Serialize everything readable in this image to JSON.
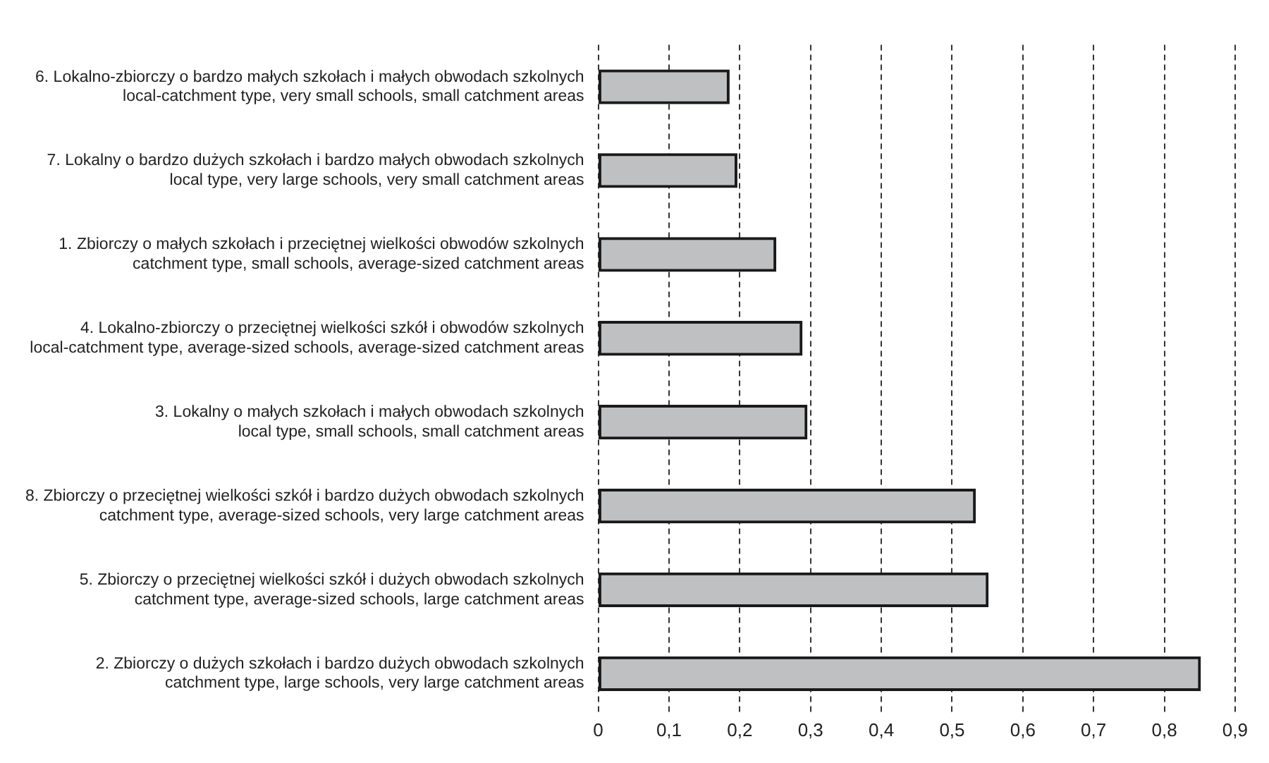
{
  "chart_data": {
    "type": "bar",
    "orientation": "horizontal",
    "categories": [
      "6. Lokalno-zbiorczy o bardzo małych szkołach i małych obwodach szkolnych\nlocal-catchment type, very small schools, small catchment areas",
      "7. Lokalny o bardzo dużych szkołach i bardzo małych obwodach szkolnych\nlocal type, very large schools, very small catchment areas",
      "1. Zbiorczy o małych szkołach i przeciętnej wielkości obwodów szkolnych\ncatchment type, small schools, average-sized catchment areas",
      "4. Lokalno-zbiorczy o przeciętnej wielkości szkół i obwodów szkolnych\nlocal-catchment type, average-sized schools, average-sized catchment areas",
      "3. Lokalny o małych szkołach i małych obwodach szkolnych\nlocal type, small schools, small catchment areas",
      "8. Zbiorczy o przeciętnej wielkości szkół i bardzo dużych obwodach szkolnych\ncatchment type, average-sized schools, very large catchment areas",
      "5. Zbiorczy o przeciętnej wielkości szkół i dużych obwodach szkolnych\ncatchment type, average-sized schools, large catchment areas",
      "2. Zbiorczy o dużych szkołach i bardzo dużych obwodach szkolnych\ncatchment type, large schools, very large catchment areas"
    ],
    "values": [
      0.185,
      0.196,
      0.251,
      0.288,
      0.295,
      0.533,
      0.551,
      0.851
    ],
    "color": "#bfc0c2",
    "xlim": [
      0,
      0.9
    ],
    "xticks": [
      {
        "value": 0,
        "label": "0"
      },
      {
        "value": 0.1,
        "label": "0,1"
      },
      {
        "value": 0.2,
        "label": "0,2"
      },
      {
        "value": 0.3,
        "label": "0,3"
      },
      {
        "value": 0.4,
        "label": "0,4"
      },
      {
        "value": 0.5,
        "label": "0,5"
      },
      {
        "value": 0.6,
        "label": "0,6"
      },
      {
        "value": 0.7,
        "label": "0,7"
      },
      {
        "value": 0.8,
        "label": "0,8"
      },
      {
        "value": 0.9,
        "label": "0,9"
      }
    ],
    "grid": "x"
  }
}
